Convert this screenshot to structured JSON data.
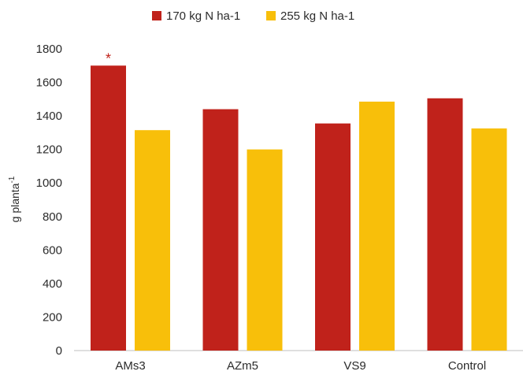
{
  "chart_data": {
    "type": "bar",
    "title": "",
    "xlabel": "",
    "ylabel": "g planta",
    "ylabel_superscript": "-1",
    "categories": [
      "AMs3",
      "AZm5",
      "VS9",
      "Control"
    ],
    "series": [
      {
        "name": "170 kg N ha-1",
        "color": "#c0221b",
        "values": [
          1700,
          1440,
          1355,
          1505
        ]
      },
      {
        "name": "255 kg N ha-1",
        "color": "#f8bf0a",
        "values": [
          1315,
          1200,
          1485,
          1325
        ]
      }
    ],
    "ylim": [
      0,
      1800
    ],
    "yticks": [
      "0",
      "200",
      "400",
      "600",
      "800",
      "1000",
      "1200",
      "1400",
      "1600",
      "1800"
    ],
    "grid": false,
    "legend_position": "top",
    "annotations": [
      {
        "text": "*",
        "category": "AMs3",
        "series": 0,
        "color": "#c0221b"
      }
    ]
  }
}
